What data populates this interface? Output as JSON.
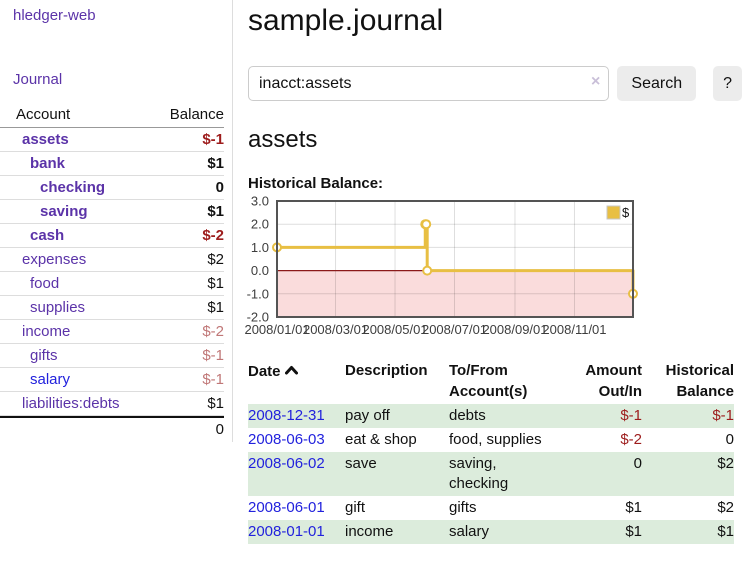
{
  "app": {
    "brand": "hledger-web"
  },
  "nav": {
    "journal": "Journal"
  },
  "colors": {
    "link_purple": "#5b33a8",
    "link_blue": "#2222dd",
    "negative": "#9d1c1c",
    "negative_muted": "#c07777",
    "row_green": "#dcecdc",
    "series_yellow": "#e8bf43"
  },
  "sidebar": {
    "header": {
      "account": "Account",
      "balance": "Balance"
    },
    "rows": [
      {
        "name": "assets",
        "balance": "$-1"
      },
      {
        "name": "bank",
        "balance": "$1"
      },
      {
        "name": "checking",
        "balance": "0"
      },
      {
        "name": "saving",
        "balance": "$1"
      },
      {
        "name": "cash",
        "balance": "$-2"
      },
      {
        "name": "expenses",
        "balance": "$2"
      },
      {
        "name": "food",
        "balance": "$1"
      },
      {
        "name": "supplies",
        "balance": "$1"
      },
      {
        "name": "income",
        "balance": "$-2"
      },
      {
        "name": "gifts",
        "balance": "$-1"
      },
      {
        "name": "salary",
        "balance": "$-1"
      },
      {
        "name": "liabilities:debts",
        "balance": "$1"
      }
    ],
    "total": "0"
  },
  "header": {
    "title": "sample.journal"
  },
  "search": {
    "value": "inacct:assets",
    "clear_icon": "×",
    "button": "Search",
    "help_button": "?"
  },
  "account_page": {
    "heading": "assets",
    "chart_label": "Historical Balance:"
  },
  "chart_data": {
    "type": "line",
    "step": true,
    "title": "Historical Balance",
    "legend_label": "$",
    "x": [
      "2008-01-01",
      "2008-06-01",
      "2008-06-02",
      "2008-06-03",
      "2008-12-31"
    ],
    "x_days": [
      0,
      152,
      153,
      154,
      365
    ],
    "values": [
      1,
      2,
      2,
      0,
      -1
    ],
    "ylim": [
      -2,
      3
    ],
    "yticks": [
      3.0,
      2.0,
      1.0,
      0.0,
      -1.0,
      -2.0
    ],
    "xticks": [
      "2008/01/01",
      "2008/03/01",
      "2008/05/01",
      "2008/07/01",
      "2008/09/01",
      "2008/11/01"
    ],
    "xtick_days": [
      0,
      60,
      121,
      182,
      244,
      305
    ],
    "xrange_days": [
      0,
      365
    ],
    "grid": true,
    "legend_position": "top-right",
    "series_color": "#e8bf43",
    "negative_fill": "#fadcdc",
    "zero_line_color": "#8b1a1a"
  },
  "transactions": {
    "headers": {
      "date": "Date",
      "description": "Description",
      "account": "To/From Account(s)",
      "amount": "Amount Out/In",
      "balance": "Historical Balance"
    },
    "rows": [
      {
        "date": "2008-12-31",
        "description": "pay off",
        "account": "debts",
        "amount": "$-1",
        "balance": "$-1"
      },
      {
        "date": "2008-06-03",
        "description": "eat & shop",
        "account": "food, supplies",
        "amount": "$-2",
        "balance": "0"
      },
      {
        "date": "2008-06-02",
        "description": "save",
        "account": "saving, checking",
        "amount": "0",
        "balance": "$2"
      },
      {
        "date": "2008-06-01",
        "description": "gift",
        "account": "gifts",
        "amount": "$1",
        "balance": "$2"
      },
      {
        "date": "2008-01-01",
        "description": "income",
        "account": "salary",
        "amount": "$1",
        "balance": "$1"
      }
    ]
  }
}
